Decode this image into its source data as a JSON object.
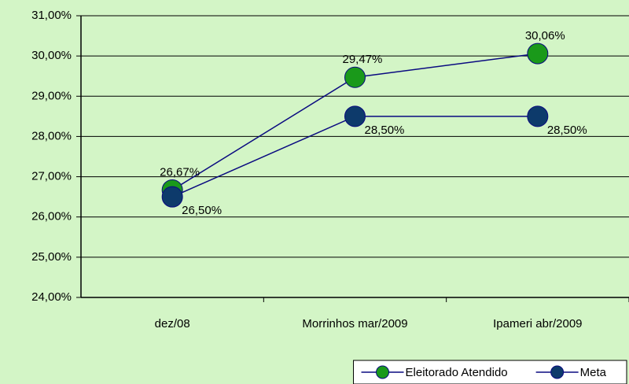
{
  "chart_data": {
    "type": "line",
    "categories": [
      "dez/08",
      "Morrinhos mar/2009",
      "Ipameri abr/2009"
    ],
    "series": [
      {
        "name": "Eleitorado Atendido",
        "color": "#1a991a",
        "values": [
          26.67,
          29.47,
          30.06
        ],
        "value_labels": [
          "26,67%",
          "29,47%",
          "30,06%"
        ]
      },
      {
        "name": "Meta",
        "color": "#0d3a6b",
        "values": [
          26.5,
          28.5,
          28.5
        ],
        "value_labels": [
          "26,50%",
          "28,50%",
          "28,50%"
        ]
      }
    ],
    "line_color": "#0a0a80",
    "ylim": [
      24,
      31
    ],
    "yticks": [
      {
        "value": 24,
        "label": "24,00%"
      },
      {
        "value": 25,
        "label": "25,00%"
      },
      {
        "value": 26,
        "label": "26,00%"
      },
      {
        "value": 27,
        "label": "27,00%"
      },
      {
        "value": 28,
        "label": "28,00%"
      },
      {
        "value": 29,
        "label": "29,00%"
      },
      {
        "value": 30,
        "label": "30,00%"
      },
      {
        "value": 31,
        "label": "31,00%"
      }
    ],
    "grid": true,
    "legend": "bottom-right"
  }
}
